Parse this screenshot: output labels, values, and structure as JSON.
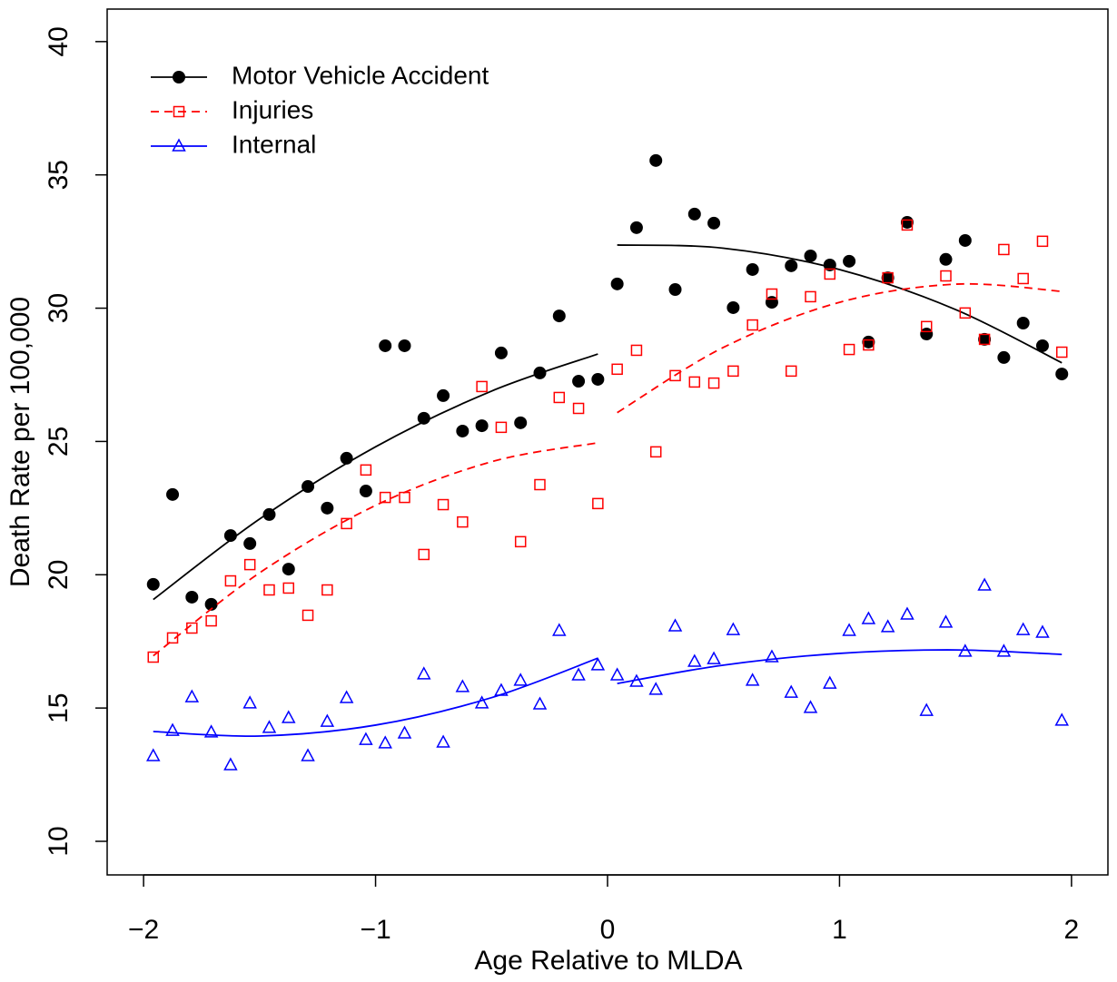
{
  "chart_data": {
    "type": "scatter",
    "xlabel": "Age Relative to MLDA",
    "ylabel": "Death Rate per 100,000",
    "x": [
      -1.9583,
      -1.875,
      -1.7917,
      -1.7083,
      -1.625,
      -1.5417,
      -1.4583,
      -1.375,
      -1.2917,
      -1.2083,
      -1.125,
      -1.0417,
      -0.9583,
      -0.875,
      -0.7917,
      -0.7083,
      -0.625,
      -0.5417,
      -0.4583,
      -0.375,
      -0.2917,
      -0.2083,
      -0.125,
      -0.0417,
      0.0417,
      0.125,
      0.2083,
      0.2917,
      0.375,
      0.4583,
      0.5417,
      0.625,
      0.7083,
      0.7917,
      0.875,
      0.9583,
      1.0417,
      1.125,
      1.2083,
      1.2917,
      1.375,
      1.4583,
      1.5417,
      1.625,
      1.7083,
      1.7917,
      1.875,
      1.9583
    ],
    "fit_x": [
      -1.9583,
      -1.5,
      -1,
      -0.5,
      -0.0417,
      null,
      0.0417,
      0.5,
      1,
      1.5,
      1.9583
    ],
    "series": [
      {
        "name": "Motor Vehicle Accident",
        "color": "#000000",
        "marker": "circle",
        "dash": "solid",
        "values": [
          19.64,
          23.01,
          19.16,
          18.89,
          21.47,
          21.17,
          22.26,
          20.21,
          23.31,
          22.5,
          24.37,
          23.14,
          28.59,
          28.59,
          25.87,
          26.72,
          25.39,
          25.59,
          28.32,
          25.7,
          27.57,
          29.71,
          27.26,
          27.33,
          30.91,
          33.02,
          35.54,
          30.7,
          33.53,
          33.19,
          30.02,
          31.45,
          30.22,
          31.59,
          31.96,
          31.62,
          31.76,
          28.73,
          31.14,
          33.22,
          29.03,
          31.83,
          32.54,
          28.83,
          28.15,
          29.44,
          28.59,
          27.53
        ],
        "fit": [
          19.07,
          22.09,
          24.8,
          26.89,
          28.28,
          null,
          32.37,
          32.25,
          31.45,
          29.95,
          27.95
        ]
      },
      {
        "name": "Injuries",
        "color": "#ff0000",
        "marker": "square",
        "dash": "dashed",
        "values": [
          16.91,
          17.63,
          18.0,
          18.27,
          19.77,
          20.38,
          19.43,
          19.5,
          18.48,
          19.43,
          21.92,
          23.93,
          22.9,
          22.9,
          20.76,
          22.63,
          21.98,
          27.06,
          25.53,
          21.24,
          23.38,
          26.65,
          26.24,
          22.67,
          27.71,
          28.42,
          24.61,
          27.47,
          27.23,
          27.19,
          27.64,
          29.37,
          30.53,
          27.64,
          30.43,
          31.28,
          28.45,
          28.62,
          31.14,
          33.12,
          29.31,
          31.21,
          29.82,
          28.83,
          32.2,
          31.11,
          32.51,
          28.35
        ],
        "fit": [
          16.96,
          20.07,
          22.6,
          24.24,
          24.95,
          null,
          26.08,
          28.53,
          30.22,
          30.9,
          30.63
        ]
      },
      {
        "name": "Internal",
        "color": "#0000ff",
        "marker": "triangle",
        "dash": "solid",
        "values": [
          13.2,
          14.15,
          15.41,
          14.09,
          12.86,
          15.18,
          14.26,
          14.63,
          13.2,
          14.49,
          15.38,
          13.81,
          13.68,
          14.05,
          16.27,
          13.71,
          15.79,
          15.18,
          15.65,
          16.03,
          15.14,
          17.9,
          16.23,
          16.61,
          16.23,
          15.99,
          15.69,
          18.07,
          16.74,
          16.84,
          17.93,
          16.03,
          16.91,
          15.58,
          15.01,
          15.92,
          17.9,
          18.34,
          18.04,
          18.51,
          14.9,
          18.21,
          17.12,
          19.6,
          17.12,
          17.93,
          17.83,
          14.53
        ],
        "fit": [
          14.12,
          13.95,
          14.36,
          15.39,
          16.87,
          null,
          15.92,
          16.61,
          17.05,
          17.18,
          17.01
        ]
      }
    ],
    "xlim": [
      -2.157,
      2.157
    ],
    "ylim": [
      8.74,
      41.22
    ],
    "xticks": [
      {
        "value": -2,
        "label": "−2"
      },
      {
        "value": -1,
        "label": "−1"
      },
      0,
      1,
      2
    ],
    "yticks": [
      10,
      15,
      20,
      25,
      30,
      35,
      40
    ],
    "legend": "top-left"
  }
}
